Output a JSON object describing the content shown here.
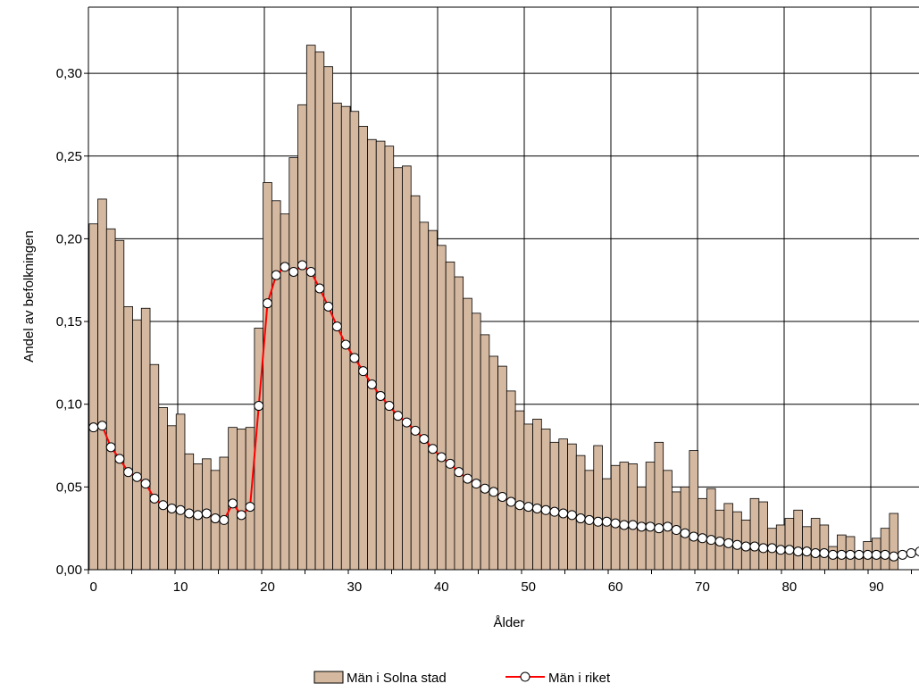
{
  "chart_data": {
    "type": "bar",
    "title": "",
    "xlabel": "Ålder",
    "ylabel": "Andel av befolkningen",
    "xlim": [
      0,
      95
    ],
    "ylim": [
      0,
      0.34
    ],
    "x_ticks": [
      0,
      10,
      20,
      30,
      40,
      50,
      60,
      70,
      80,
      90
    ],
    "y_ticks": [
      0,
      0.05,
      0.1,
      0.15,
      0.2,
      0.25,
      0.3
    ],
    "y_tick_labels": [
      "0,00",
      "0,05",
      "0,10",
      "0,15",
      "0,20",
      "0,25",
      "0,30"
    ],
    "grid": true,
    "legend_position": "bottom",
    "series": [
      {
        "name": "Män i Solna stad",
        "type": "bar",
        "color": "#d4b8a0",
        "x": [
          0,
          1,
          2,
          3,
          4,
          5,
          6,
          7,
          8,
          9,
          10,
          11,
          12,
          13,
          14,
          15,
          16,
          17,
          18,
          19,
          20,
          21,
          22,
          23,
          24,
          25,
          26,
          27,
          28,
          29,
          30,
          31,
          32,
          33,
          34,
          35,
          36,
          37,
          38,
          39,
          40,
          41,
          42,
          43,
          44,
          45,
          46,
          47,
          48,
          49,
          50,
          51,
          52,
          53,
          54,
          55,
          56,
          57,
          58,
          59,
          60,
          61,
          62,
          63,
          64,
          65,
          66,
          67,
          68,
          69,
          70,
          71,
          72,
          73,
          74,
          75,
          76,
          77,
          78,
          79,
          80,
          81,
          82,
          83,
          84,
          85,
          86,
          87,
          88,
          89,
          90,
          91,
          92
        ],
        "values": [
          0.209,
          0.224,
          0.206,
          0.199,
          0.159,
          0.151,
          0.158,
          0.124,
          0.098,
          0.087,
          0.094,
          0.07,
          0.064,
          0.067,
          0.06,
          0.068,
          0.086,
          0.085,
          0.086,
          0.146,
          0.234,
          0.223,
          0.215,
          0.249,
          0.281,
          0.317,
          0.313,
          0.304,
          0.282,
          0.28,
          0.277,
          0.268,
          0.26,
          0.259,
          0.256,
          0.243,
          0.244,
          0.226,
          0.21,
          0.205,
          0.196,
          0.186,
          0.177,
          0.164,
          0.155,
          0.142,
          0.129,
          0.123,
          0.108,
          0.096,
          0.088,
          0.091,
          0.085,
          0.077,
          0.079,
          0.076,
          0.069,
          0.06,
          0.075,
          0.055,
          0.063,
          0.065,
          0.064,
          0.05,
          0.065,
          0.077,
          0.06,
          0.047,
          0.05,
          0.072,
          0.043,
          0.049,
          0.036,
          0.04,
          0.035,
          0.03,
          0.043,
          0.041,
          0.025,
          0.027,
          0.031,
          0.036,
          0.026,
          0.031,
          0.027,
          0.014,
          0.021,
          0.02,
          0.007,
          0.017,
          0.019,
          0.025,
          0.034
        ]
      },
      {
        "name": "Män i riket",
        "type": "line",
        "color": "#ff0000",
        "marker": "circle",
        "x": [
          0,
          1,
          2,
          3,
          4,
          5,
          6,
          7,
          8,
          9,
          10,
          11,
          12,
          13,
          14,
          15,
          16,
          17,
          18,
          19,
          20,
          21,
          22,
          23,
          24,
          25,
          26,
          27,
          28,
          29,
          30,
          31,
          32,
          33,
          34,
          35,
          36,
          37,
          38,
          39,
          40,
          41,
          42,
          43,
          44,
          45,
          46,
          47,
          48,
          49,
          50,
          51,
          52,
          53,
          54,
          55,
          56,
          57,
          58,
          59,
          60,
          61,
          62,
          63,
          64,
          65,
          66,
          67,
          68,
          69,
          70,
          71,
          72,
          73,
          74,
          75,
          76,
          77,
          78,
          79,
          80,
          81,
          82,
          83,
          84,
          85,
          86,
          87,
          88,
          89,
          90,
          91,
          92,
          93,
          94,
          95
        ],
        "values": [
          0.086,
          0.087,
          0.074,
          0.067,
          0.059,
          0.056,
          0.052,
          0.043,
          0.039,
          0.037,
          0.036,
          0.034,
          0.033,
          0.034,
          0.031,
          0.03,
          0.04,
          0.033,
          0.038,
          0.099,
          0.161,
          0.178,
          0.183,
          0.18,
          0.184,
          0.18,
          0.17,
          0.159,
          0.147,
          0.136,
          0.128,
          0.12,
          0.112,
          0.105,
          0.099,
          0.093,
          0.089,
          0.084,
          0.079,
          0.073,
          0.068,
          0.064,
          0.059,
          0.055,
          0.052,
          0.049,
          0.047,
          0.044,
          0.041,
          0.039,
          0.038,
          0.037,
          0.036,
          0.035,
          0.034,
          0.033,
          0.031,
          0.03,
          0.029,
          0.029,
          0.028,
          0.027,
          0.027,
          0.026,
          0.026,
          0.025,
          0.026,
          0.024,
          0.022,
          0.02,
          0.019,
          0.018,
          0.017,
          0.016,
          0.015,
          0.014,
          0.014,
          0.013,
          0.013,
          0.012,
          0.012,
          0.011,
          0.011,
          0.01,
          0.01,
          0.009,
          0.009,
          0.009,
          0.009,
          0.009,
          0.009,
          0.009,
          0.008,
          0.009,
          0.01,
          0.011
        ]
      }
    ]
  }
}
